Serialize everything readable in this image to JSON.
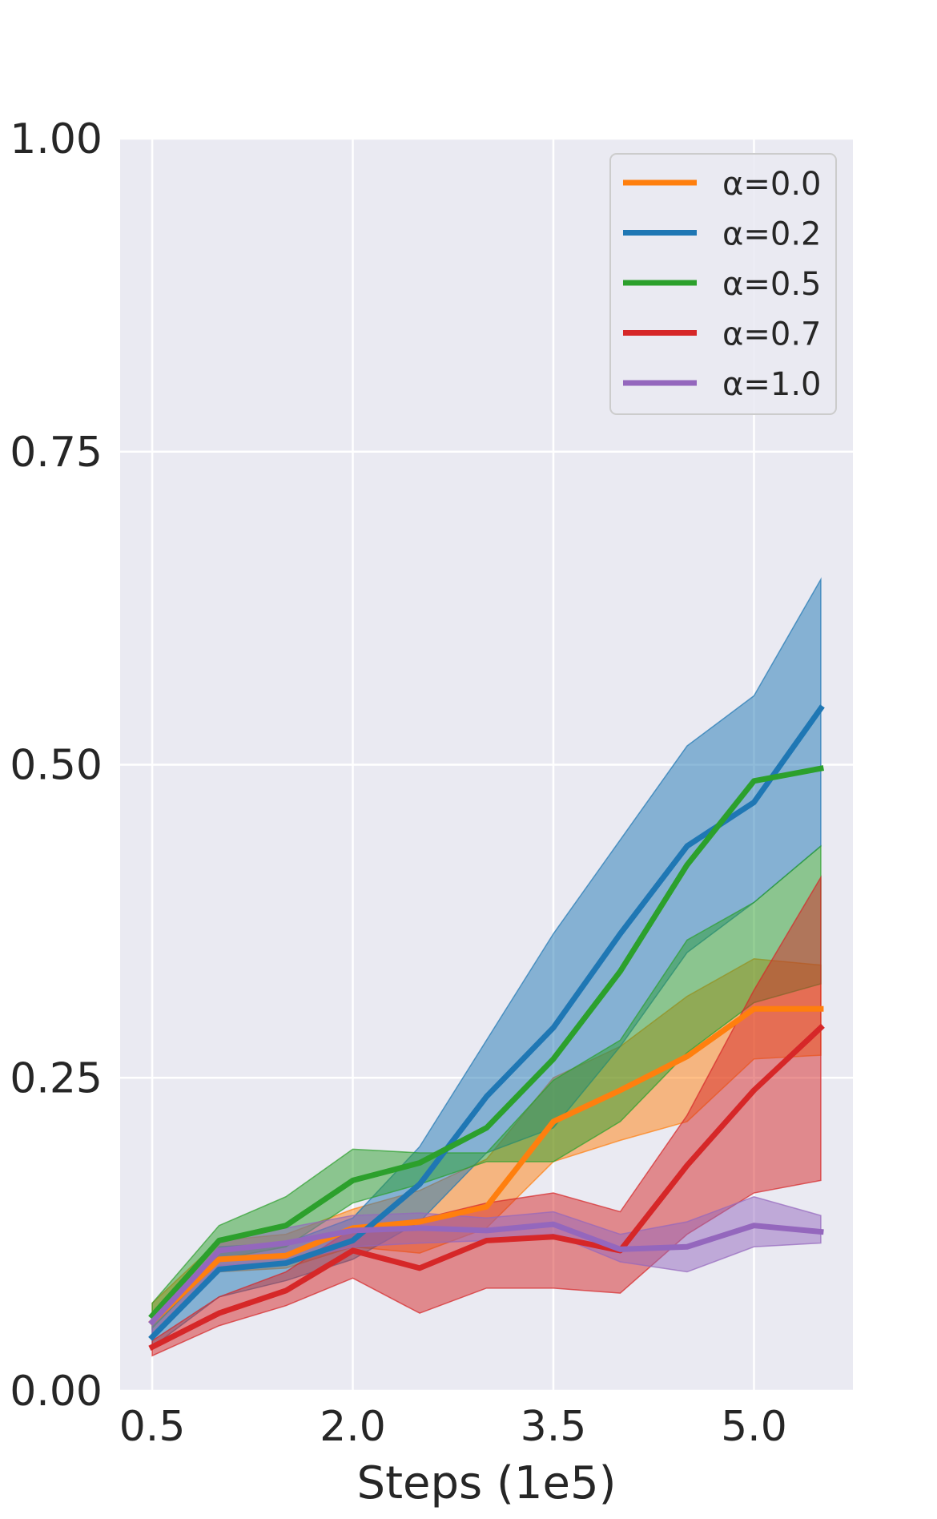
{
  "chart_data": {
    "type": "line",
    "title": "",
    "xlabel": "Steps (1e5)",
    "ylabel": "",
    "xlim": [
      0.26,
      5.74
    ],
    "ylim": [
      0,
      1
    ],
    "xticks": [
      0.5,
      2.0,
      3.5,
      5.0
    ],
    "xtick_labels": [
      "0.5",
      "2.0",
      "3.5",
      "5.0"
    ],
    "yticks": [
      0,
      0.25,
      0.5,
      0.75,
      1.0
    ],
    "ytick_labels": [
      "0.00",
      "0.25",
      "0.50",
      "0.75",
      "1.00"
    ],
    "grid": true,
    "legend_position": "top-right",
    "x": [
      0.5,
      1.0,
      1.5,
      2.0,
      2.5,
      3.0,
      3.5,
      4.0,
      4.5,
      5.0,
      5.5
    ],
    "series": [
      {
        "name": "α=0.0",
        "color": "#ff7f0e",
        "values": [
          0.055,
          0.105,
          0.108,
          0.13,
          0.135,
          0.147,
          0.215,
          0.24,
          0.267,
          0.305,
          0.305
        ],
        "lower": [
          0.045,
          0.095,
          0.098,
          0.115,
          0.11,
          0.13,
          0.183,
          0.2,
          0.215,
          0.265,
          0.268
        ],
        "upper": [
          0.07,
          0.12,
          0.125,
          0.145,
          0.16,
          0.185,
          0.25,
          0.275,
          0.315,
          0.345,
          0.34
        ]
      },
      {
        "name": "α=0.2",
        "color": "#1f77b4",
        "values": [
          0.043,
          0.097,
          0.102,
          0.12,
          0.165,
          0.235,
          0.29,
          0.365,
          0.435,
          0.47,
          0.545
        ],
        "lower": [
          0.035,
          0.075,
          0.088,
          0.105,
          0.135,
          0.19,
          0.21,
          0.275,
          0.35,
          0.39,
          0.435
        ],
        "upper": [
          0.052,
          0.115,
          0.118,
          0.138,
          0.195,
          0.28,
          0.365,
          0.44,
          0.515,
          0.555,
          0.648
        ]
      },
      {
        "name": "α=0.5",
        "color": "#2ca02c",
        "values": [
          0.06,
          0.12,
          0.132,
          0.168,
          0.182,
          0.21,
          0.265,
          0.335,
          0.42,
          0.487,
          0.497
        ],
        "lower": [
          0.05,
          0.105,
          0.115,
          0.15,
          0.165,
          0.183,
          0.183,
          0.215,
          0.27,
          0.31,
          0.325
        ],
        "upper": [
          0.07,
          0.132,
          0.155,
          0.193,
          0.19,
          0.19,
          0.248,
          0.28,
          0.36,
          0.39,
          0.435
        ]
      },
      {
        "name": "α=0.7",
        "color": "#d62728",
        "values": [
          0.035,
          0.062,
          0.08,
          0.112,
          0.098,
          0.12,
          0.123,
          0.112,
          0.18,
          0.24,
          0.29
        ],
        "lower": [
          0.028,
          0.052,
          0.068,
          0.09,
          0.062,
          0.082,
          0.082,
          0.078,
          0.125,
          0.158,
          0.168
        ],
        "upper": [
          0.04,
          0.075,
          0.095,
          0.13,
          0.137,
          0.15,
          0.158,
          0.143,
          0.22,
          0.32,
          0.41
        ]
      },
      {
        "name": "α=1.0",
        "color": "#9467bd",
        "values": [
          0.055,
          0.112,
          0.118,
          0.128,
          0.13,
          0.128,
          0.133,
          0.113,
          0.115,
          0.132,
          0.127
        ],
        "lower": [
          0.045,
          0.1,
          0.103,
          0.115,
          0.118,
          0.12,
          0.125,
          0.103,
          0.095,
          0.115,
          0.118
        ],
        "upper": [
          0.062,
          0.122,
          0.13,
          0.14,
          0.142,
          0.138,
          0.143,
          0.125,
          0.135,
          0.155,
          0.14
        ]
      }
    ]
  }
}
